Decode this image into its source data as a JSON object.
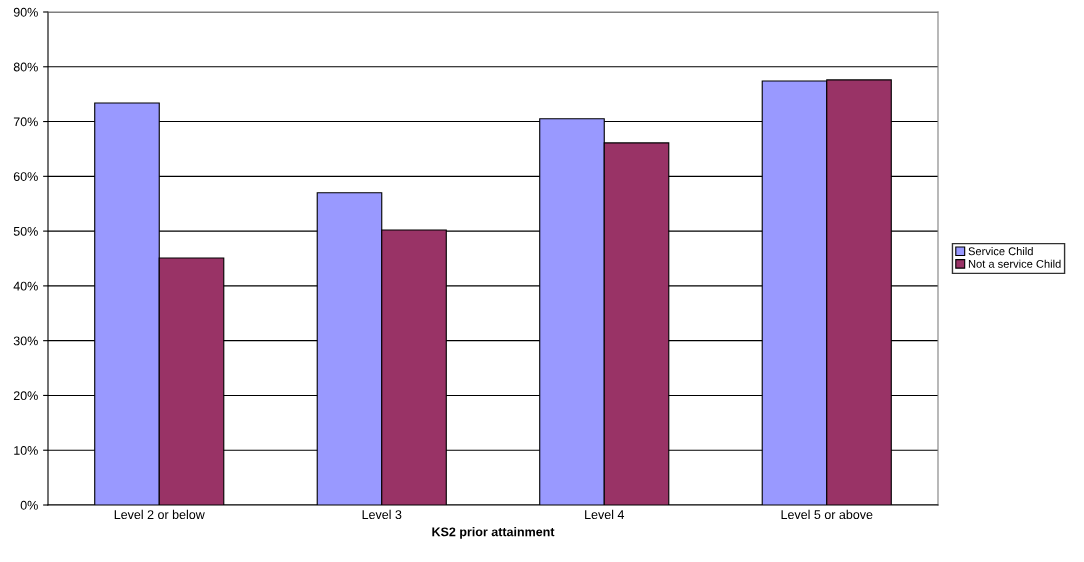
{
  "chart_data": {
    "type": "bar",
    "xlabel": "KS2 prior attainment",
    "categories": [
      "Level 2 or below",
      "Level 3",
      "Level 4",
      "Level 5 or above"
    ],
    "series": [
      {
        "name": "Service Child",
        "color": "#9999ff",
        "values": [
          73.4,
          57.0,
          70.5,
          77.4
        ]
      },
      {
        "name": "Not a service Child",
        "color": "#993366",
        "values": [
          45.1,
          50.2,
          66.1,
          77.6
        ]
      }
    ],
    "ylim": [
      0,
      90
    ],
    "yticks": [
      {
        "value": 0,
        "label": "0%"
      },
      {
        "value": 10,
        "label": "10%"
      },
      {
        "value": 20,
        "label": "20%"
      },
      {
        "value": 30,
        "label": "30%"
      },
      {
        "value": 40,
        "label": "40%"
      },
      {
        "value": 50,
        "label": "50%"
      },
      {
        "value": 60,
        "label": "60%"
      },
      {
        "value": 70,
        "label": "70%"
      },
      {
        "value": 80,
        "label": "80%"
      },
      {
        "value": 90,
        "label": "90%"
      }
    ],
    "grid": "y",
    "legend": "right"
  }
}
